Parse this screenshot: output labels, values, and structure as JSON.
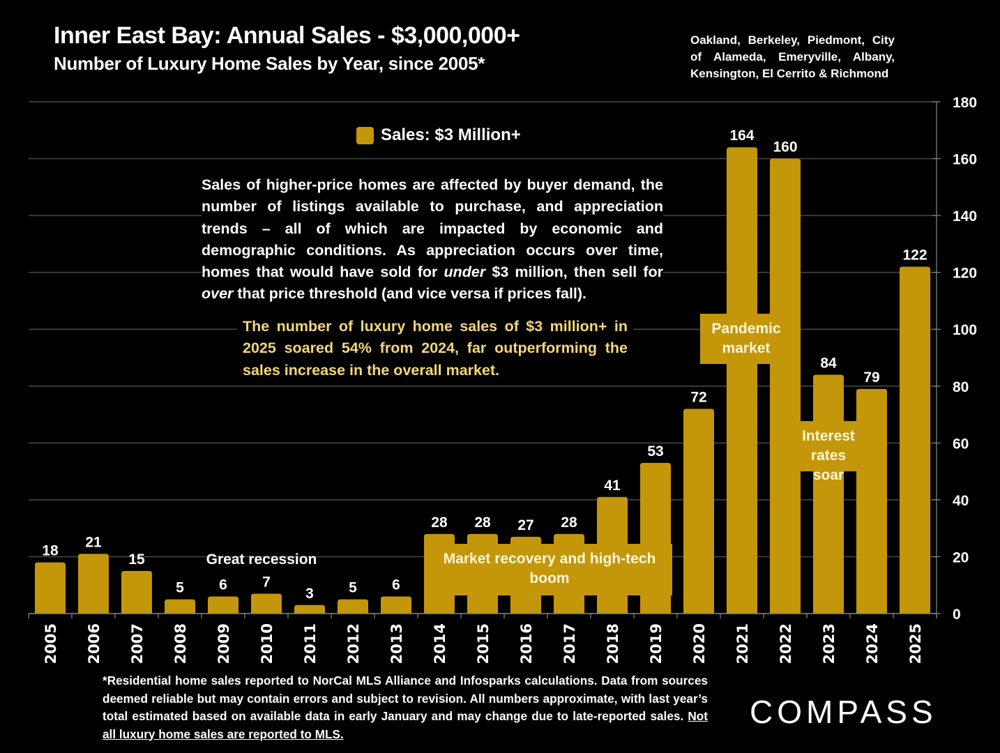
{
  "header": {
    "title": "Inner East Bay:  Annual Sales - $3,000,000+",
    "subtitle": "Number of Luxury Home Sales by Year, since 2005*",
    "region": "Oakland, Berkeley, Piedmont, City of Alameda, Emeryville, Albany, Kensington, El Cerrito & Richmond"
  },
  "legend": {
    "label": "Sales: $3 Million+",
    "color": "#c4960a"
  },
  "note": {
    "part1": "Sales of higher-price homes are affected by buyer demand, the number of listings available to purchase, and appreciation trends – all of which are impacted by economic and demographic conditions. As appreciation occurs over time, homes that would have sold for ",
    "em1": "under",
    "part2": " $3 million, then sell for ",
    "em2": "over",
    "part3": " that price threshold (and vice versa if prices fall)."
  },
  "highlight": "The number of luxury home sales of $3 million+ in 2025 soared 54% from 2024, far outperforming the sales increase in the overall market.",
  "annotations": {
    "recession": "Great recession",
    "recovery": "Market recovery and high-tech boom",
    "pandemic": "Pandemic market",
    "interest": "Interest rates soar"
  },
  "footnote": {
    "text": "*Residential home sales reported to NorCal MLS Alliance and Infosparks calculations. Data from sources deemed reliable but may contain errors and subject to revision. All numbers approximate, with last year’s total estimated based on available data in early January and may change due to late-reported sales. ",
    "underlined": "Not all luxury home sales are reported to MLS."
  },
  "logo": "COMPASS",
  "chart_data": {
    "type": "bar",
    "title": "Inner East Bay:  Annual Sales - $3,000,000+",
    "subtitle": "Number of Luxury Home Sales by Year, since 2005*",
    "xlabel": "",
    "ylabel": "",
    "categories": [
      "2005",
      "2006",
      "2007",
      "2008",
      "2009",
      "2010",
      "2011",
      "2012",
      "2013",
      "2014",
      "2015",
      "2016",
      "2017",
      "2018",
      "2019",
      "2020",
      "2021",
      "2022",
      "2023",
      "2024",
      "2025"
    ],
    "series": [
      {
        "name": "Sales: $3 Million+",
        "color": "#c4960a",
        "values": [
          18,
          21,
          15,
          5,
          6,
          7,
          3,
          5,
          6,
          28,
          28,
          27,
          28,
          41,
          53,
          72,
          164,
          160,
          84,
          79,
          122
        ]
      }
    ],
    "ylim": [
      0,
      180
    ],
    "yticks": [
      0,
      20,
      40,
      60,
      80,
      100,
      120,
      140,
      160,
      180
    ],
    "y_axis_side": "right",
    "grid": true,
    "legend_position": "top-center",
    "data_labels": true
  }
}
